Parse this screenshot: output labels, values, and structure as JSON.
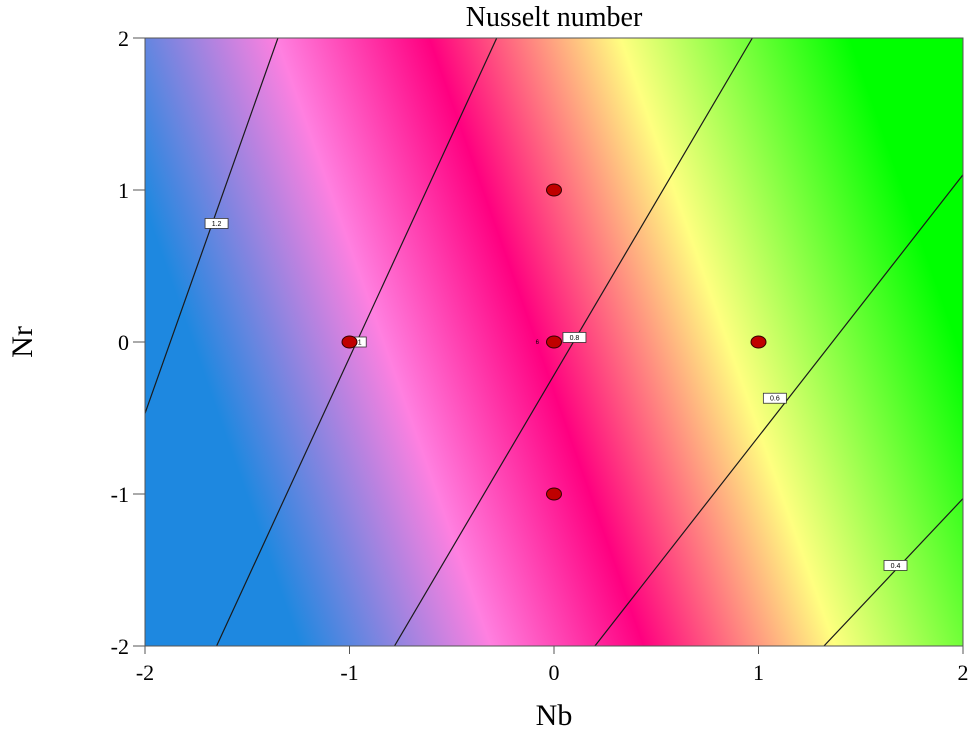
{
  "chart_data": {
    "type": "heatmap",
    "subtype": "contour",
    "title": "Nusselt number",
    "xlabel": "Nb",
    "ylabel": "Nr",
    "xlim": [
      -2,
      2
    ],
    "ylim": [
      -2,
      2
    ],
    "x_ticks": [
      "-2",
      "-1",
      "0",
      "1",
      "2"
    ],
    "y_ticks": [
      "-2",
      "-1",
      "0",
      "1",
      "2"
    ],
    "grid": false,
    "legend": null,
    "color_scale": [
      {
        "stop": 0.0,
        "color": "#1e88e0",
        "meaning": "high (~1.2+)"
      },
      {
        "stop": 0.25,
        "color": "#ff80e0"
      },
      {
        "stop": 0.45,
        "color": "#ff0080",
        "meaning": "~0.8-0.9"
      },
      {
        "stop": 0.7,
        "color": "#ffff80"
      },
      {
        "stop": 1.0,
        "color": "#00ff00",
        "meaning": "low (~0.4)"
      }
    ],
    "contour_lines": [
      {
        "level": "1.2",
        "label": "1.2",
        "x1": -2.0,
        "y1": -0.47,
        "x2": -1.35,
        "y2": 2.0,
        "label_at": [
          -1.65,
          0.78
        ]
      },
      {
        "level": "1",
        "label": "1",
        "x1": -1.65,
        "y1": -2.0,
        "x2": -0.28,
        "y2": 2.0,
        "label_at": [
          -0.95,
          0.0
        ]
      },
      {
        "level": "0.8",
        "label": "0.8",
        "x1": -0.78,
        "y1": -2.0,
        "x2": 0.97,
        "y2": 2.0,
        "label_at": [
          0.1,
          0.03
        ]
      },
      {
        "level": "0.6",
        "label": "0.6",
        "x1": 0.2,
        "y1": -2.0,
        "x2": 2.0,
        "y2": 1.1,
        "label_at": [
          1.08,
          -0.37
        ]
      },
      {
        "level": "0.4",
        "label": "0.4",
        "x1": 1.32,
        "y1": -2.0,
        "x2": 2.0,
        "y2": -1.03,
        "label_at": [
          1.67,
          -1.47
        ]
      }
    ],
    "design_points": [
      {
        "x": 0,
        "y": 1
      },
      {
        "x": -1,
        "y": 0
      },
      {
        "x": 0,
        "y": 0
      },
      {
        "x": 1,
        "y": 0
      },
      {
        "x": 0,
        "y": -1
      }
    ],
    "center_point_annotation": {
      "text": "6",
      "x": -0.08,
      "y": 0.0
    },
    "point_color": "#c00000"
  }
}
